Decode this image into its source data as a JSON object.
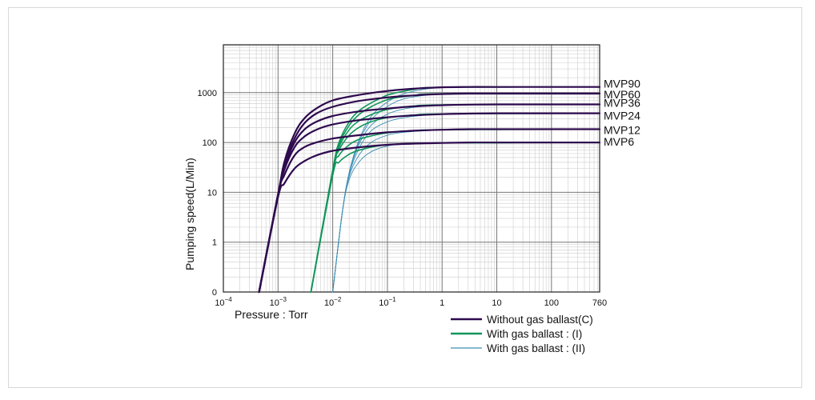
{
  "chart_data": {
    "type": "line",
    "xlabel": "Pressure : Torr",
    "ylabel": "Pumping speed(L/Min)",
    "x_scale": "log",
    "y_scale": "log",
    "xlim": [
      0.0001,
      760
    ],
    "x_ticks": [
      {
        "value": 0.0001,
        "label": "10",
        "exp": "−4"
      },
      {
        "value": 0.001,
        "label": "10",
        "exp": "−3"
      },
      {
        "value": 0.01,
        "label": "10",
        "exp": "−2"
      },
      {
        "value": 0.1,
        "label": "10",
        "exp": "−1"
      },
      {
        "value": 1,
        "label": "1",
        "exp": ""
      },
      {
        "value": 10,
        "label": "10",
        "exp": ""
      },
      {
        "value": 100,
        "label": "100",
        "exp": ""
      },
      {
        "value": 760,
        "label": "760",
        "exp": ""
      }
    ],
    "y_ticks": [
      {
        "value": 0.1,
        "label": "0"
      },
      {
        "value": 1,
        "label": "1"
      },
      {
        "value": 10,
        "label": "10"
      },
      {
        "value": 100,
        "label": "100"
      },
      {
        "value": 1000,
        "label": "1000"
      }
    ],
    "grid": true,
    "legend": {
      "position": "bottom-right",
      "entries": [
        {
          "label": "Without gas ballast(C)",
          "color": "#2e0a4e"
        },
        {
          "label": "With gas ballast : (I)",
          "color": "#11955a"
        },
        {
          "label": "With gas ballast : (II)",
          "color": "#3d8fb5"
        }
      ]
    },
    "colors": {
      "C": "#2e0a4e",
      "I": "#11955a",
      "II": "#3d8fb5"
    },
    "series": [
      {
        "name": "MVP90",
        "C": [
          [
            0.00045,
            0.1
          ],
          [
            0.001,
            9
          ],
          [
            0.0013,
            40
          ],
          [
            0.002,
            150
          ],
          [
            0.003,
            300
          ],
          [
            0.005,
            480
          ],
          [
            0.01,
            700
          ],
          [
            0.03,
            900
          ],
          [
            0.1,
            1080
          ],
          [
            0.3,
            1200
          ],
          [
            1,
            1280
          ],
          [
            3,
            1300
          ],
          [
            10,
            1300
          ],
          [
            100,
            1300
          ],
          [
            760,
            1300
          ]
        ],
        "I": [
          [
            0.004,
            0.1
          ],
          [
            0.01,
            28
          ],
          [
            0.013,
            100
          ],
          [
            0.02,
            260
          ],
          [
            0.03,
            430
          ],
          [
            0.05,
            620
          ],
          [
            0.08,
            800
          ],
          [
            0.12,
            950
          ],
          [
            0.3,
            1150
          ],
          [
            1,
            1280
          ],
          [
            760,
            1300
          ]
        ],
        "II": [
          [
            0.01,
            0.1
          ],
          [
            0.015,
            4
          ],
          [
            0.02,
            25
          ],
          [
            0.03,
            110
          ],
          [
            0.05,
            330
          ],
          [
            0.1,
            650
          ],
          [
            0.2,
            950
          ],
          [
            0.5,
            1180
          ],
          [
            1,
            1260
          ],
          [
            3,
            1300
          ],
          [
            760,
            1300
          ]
        ]
      },
      {
        "name": "MVP60",
        "C": [
          [
            0.00045,
            0.1
          ],
          [
            0.001,
            9
          ],
          [
            0.0013,
            36
          ],
          [
            0.002,
            120
          ],
          [
            0.003,
            240
          ],
          [
            0.005,
            380
          ],
          [
            0.01,
            520
          ],
          [
            0.03,
            680
          ],
          [
            0.1,
            800
          ],
          [
            0.3,
            880
          ],
          [
            1,
            940
          ],
          [
            3,
            960
          ],
          [
            10,
            960
          ],
          [
            100,
            960
          ],
          [
            760,
            960
          ]
        ],
        "I": [
          [
            0.004,
            0.1
          ],
          [
            0.01,
            28
          ],
          [
            0.013,
            90
          ],
          [
            0.02,
            220
          ],
          [
            0.03,
            360
          ],
          [
            0.05,
            520
          ],
          [
            0.08,
            660
          ],
          [
            0.12,
            760
          ],
          [
            0.3,
            880
          ],
          [
            1,
            950
          ],
          [
            760,
            960
          ]
        ],
        "II": [
          [
            0.01,
            0.1
          ],
          [
            0.015,
            4
          ],
          [
            0.02,
            25
          ],
          [
            0.03,
            100
          ],
          [
            0.05,
            280
          ],
          [
            0.1,
            530
          ],
          [
            0.2,
            750
          ],
          [
            0.5,
            890
          ],
          [
            1,
            940
          ],
          [
            3,
            960
          ],
          [
            760,
            960
          ]
        ]
      },
      {
        "name": "MVP36",
        "C": [
          [
            0.00045,
            0.1
          ],
          [
            0.001,
            9
          ],
          [
            0.0013,
            32
          ],
          [
            0.002,
            100
          ],
          [
            0.003,
            180
          ],
          [
            0.005,
            260
          ],
          [
            0.01,
            340
          ],
          [
            0.03,
            420
          ],
          [
            0.1,
            480
          ],
          [
            0.3,
            530
          ],
          [
            1,
            560
          ],
          [
            3,
            575
          ],
          [
            10,
            580
          ],
          [
            100,
            580
          ],
          [
            760,
            580
          ]
        ],
        "I": [
          [
            0.004,
            0.1
          ],
          [
            0.01,
            27
          ],
          [
            0.013,
            80
          ],
          [
            0.02,
            180
          ],
          [
            0.03,
            270
          ],
          [
            0.05,
            360
          ],
          [
            0.08,
            430
          ],
          [
            0.12,
            480
          ],
          [
            0.3,
            540
          ],
          [
            1,
            570
          ],
          [
            760,
            580
          ]
        ],
        "II": [
          [
            0.01,
            0.1
          ],
          [
            0.015,
            4
          ],
          [
            0.02,
            24
          ],
          [
            0.03,
            90
          ],
          [
            0.05,
            220
          ],
          [
            0.1,
            370
          ],
          [
            0.2,
            470
          ],
          [
            0.5,
            540
          ],
          [
            1,
            570
          ],
          [
            3,
            580
          ],
          [
            760,
            580
          ]
        ]
      },
      {
        "name": "MVP24",
        "C": [
          [
            0.00045,
            0.1
          ],
          [
            0.001,
            9
          ],
          [
            0.0013,
            28
          ],
          [
            0.002,
            80
          ],
          [
            0.003,
            130
          ],
          [
            0.005,
            180
          ],
          [
            0.01,
            230
          ],
          [
            0.03,
            280
          ],
          [
            0.1,
            320
          ],
          [
            0.3,
            350
          ],
          [
            1,
            370
          ],
          [
            3,
            380
          ],
          [
            10,
            385
          ],
          [
            100,
            385
          ],
          [
            760,
            385
          ]
        ],
        "I": [
          [
            0.004,
            0.1
          ],
          [
            0.01,
            26
          ],
          [
            0.013,
            70
          ],
          [
            0.02,
            140
          ],
          [
            0.03,
            200
          ],
          [
            0.05,
            260
          ],
          [
            0.08,
            300
          ],
          [
            0.12,
            325
          ],
          [
            0.3,
            355
          ],
          [
            1,
            375
          ],
          [
            760,
            385
          ]
        ],
        "II": [
          [
            0.01,
            0.1
          ],
          [
            0.015,
            4
          ],
          [
            0.02,
            23
          ],
          [
            0.03,
            75
          ],
          [
            0.05,
            170
          ],
          [
            0.1,
            260
          ],
          [
            0.2,
            315
          ],
          [
            0.5,
            355
          ],
          [
            1,
            375
          ],
          [
            3,
            385
          ],
          [
            760,
            385
          ]
        ]
      },
      {
        "name": "MVP12",
        "C": [
          [
            0.00045,
            0.1
          ],
          [
            0.001,
            9
          ],
          [
            0.0013,
            22
          ],
          [
            0.002,
            55
          ],
          [
            0.003,
            80
          ],
          [
            0.005,
            100
          ],
          [
            0.01,
            120
          ],
          [
            0.03,
            140
          ],
          [
            0.1,
            160
          ],
          [
            0.3,
            172
          ],
          [
            1,
            180
          ],
          [
            3,
            185
          ],
          [
            10,
            185
          ],
          [
            100,
            185
          ],
          [
            760,
            185
          ]
        ],
        "I": [
          [
            0.004,
            0.1
          ],
          [
            0.01,
            25
          ],
          [
            0.013,
            55
          ],
          [
            0.02,
            90
          ],
          [
            0.03,
            115
          ],
          [
            0.05,
            135
          ],
          [
            0.08,
            150
          ],
          [
            0.12,
            160
          ],
          [
            0.3,
            172
          ],
          [
            1,
            180
          ],
          [
            760,
            185
          ]
        ],
        "II": [
          [
            0.01,
            0.1
          ],
          [
            0.015,
            4
          ],
          [
            0.02,
            21
          ],
          [
            0.03,
            55
          ],
          [
            0.05,
            100
          ],
          [
            0.1,
            140
          ],
          [
            0.2,
            160
          ],
          [
            0.5,
            172
          ],
          [
            1,
            180
          ],
          [
            3,
            185
          ],
          [
            760,
            185
          ]
        ]
      },
      {
        "name": "MVP6",
        "C": [
          [
            0.00045,
            0.1
          ],
          [
            0.001,
            8
          ],
          [
            0.0013,
            15
          ],
          [
            0.002,
            30
          ],
          [
            0.003,
            42
          ],
          [
            0.005,
            55
          ],
          [
            0.01,
            68
          ],
          [
            0.03,
            80
          ],
          [
            0.1,
            90
          ],
          [
            0.3,
            95
          ],
          [
            1,
            98
          ],
          [
            3,
            100
          ],
          [
            10,
            100
          ],
          [
            100,
            100
          ],
          [
            760,
            100
          ]
        ],
        "I": [
          [
            0.004,
            0.1
          ],
          [
            0.01,
            22
          ],
          [
            0.013,
            40
          ],
          [
            0.02,
            58
          ],
          [
            0.03,
            70
          ],
          [
            0.05,
            80
          ],
          [
            0.08,
            88
          ],
          [
            0.12,
            92
          ],
          [
            0.3,
            96
          ],
          [
            1,
            98
          ],
          [
            760,
            100
          ]
        ],
        "II": [
          [
            0.01,
            0.1
          ],
          [
            0.015,
            4
          ],
          [
            0.02,
            18
          ],
          [
            0.03,
            40
          ],
          [
            0.05,
            65
          ],
          [
            0.1,
            85
          ],
          [
            0.2,
            93
          ],
          [
            0.5,
            97
          ],
          [
            1,
            99
          ],
          [
            3,
            100
          ],
          [
            760,
            100
          ]
        ]
      }
    ]
  }
}
